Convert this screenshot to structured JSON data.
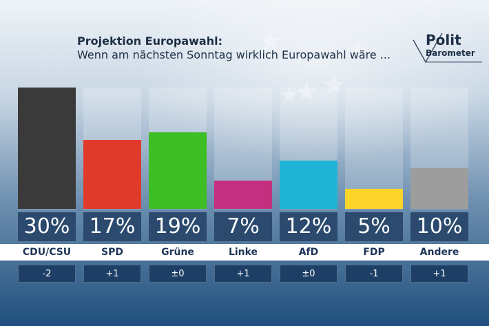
{
  "header": {
    "title": "Projektion Europawahl:",
    "subtitle": "Wenn am nächsten Sonntag wirklich Europawahl wäre ..."
  },
  "logo": {
    "line1": "Polit",
    "line2": "Barometer"
  },
  "colors": {
    "CDU/CSU": "#3a3a3a",
    "SPD": "#e03a2a",
    "Grüne": "#3dbe25",
    "Linke": "#c4307f",
    "AfD": "#1fb5d6",
    "FDP": "#fcd42a",
    "Andere": "#9d9d9d"
  },
  "chart_data": {
    "type": "bar",
    "title": "Projektion Europawahl:",
    "subtitle": "Wenn am nächsten Sonntag wirklich Europawahl wäre ...",
    "categories": [
      "CDU/CSU",
      "SPD",
      "Grüne",
      "Linke",
      "AfD",
      "FDP",
      "Andere"
    ],
    "values": [
      30,
      17,
      19,
      7,
      12,
      5,
      10
    ],
    "value_labels": [
      "30%",
      "17%",
      "19%",
      "7%",
      "12%",
      "5%",
      "10%"
    ],
    "changes": [
      "-2",
      "+1",
      "±0",
      "+1",
      "±0",
      "-1",
      "+1"
    ],
    "ylim": [
      0,
      30
    ],
    "xlabel": "",
    "ylabel": ""
  }
}
